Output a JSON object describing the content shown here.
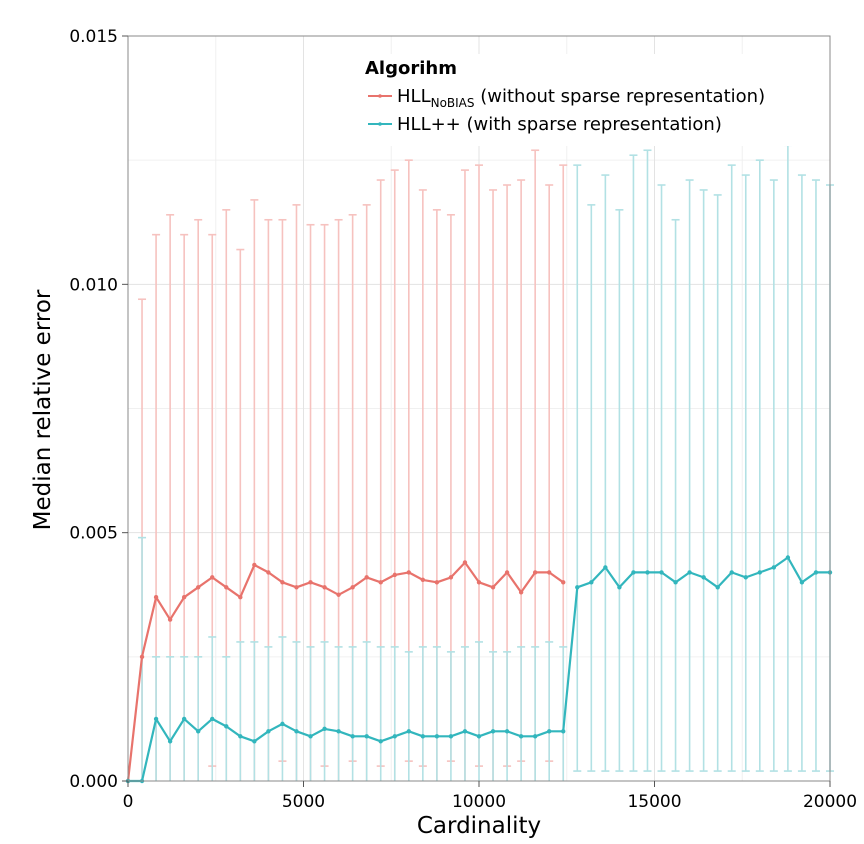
{
  "chart_data": {
    "type": "line",
    "xlabel": "Cardinality",
    "ylabel": "Median relative error",
    "xlim": [
      0,
      20000
    ],
    "ylim": [
      0,
      0.015
    ],
    "x_ticks": [
      "0",
      "5000",
      "10000",
      "15000",
      "20000"
    ],
    "y_ticks": [
      "0.000",
      "0.005",
      "0.010",
      "0.015"
    ],
    "x_tick_values": [
      0,
      5000,
      10000,
      15000,
      20000
    ],
    "y_tick_values": [
      0,
      0.005,
      0.01,
      0.015
    ],
    "grid": true,
    "legend": {
      "title": "Algorihm",
      "placement": "top-right",
      "entries": [
        {
          "main": "HLL",
          "subscript": "NoBIAS",
          "rest": " (without sparse representation)"
        },
        {
          "main": "HLL++",
          "subscript": "",
          "rest": " (with sparse representation)"
        }
      ]
    },
    "colors": {
      "nobias": "#e8736c",
      "nobias_err": "#f6c2bf",
      "hllpp": "#32b6bd",
      "hllpp_err": "#b2e1e4",
      "grid": "#e3e3e3",
      "frame": "#888888"
    },
    "series": [
      {
        "id": "nobias",
        "x": [
          0,
          400,
          800,
          1200,
          1600,
          2000,
          2400,
          2800,
          3200,
          3600,
          4000,
          4400,
          4800,
          5200,
          5600,
          6000,
          6400,
          6800,
          7200,
          7600,
          8000,
          8400,
          8800,
          9200,
          9600,
          10000,
          10400,
          10800,
          11200,
          11600,
          12000,
          12400
        ],
        "y": [
          0.0,
          0.0025,
          0.0037,
          0.00325,
          0.0037,
          0.0039,
          0.0041,
          0.0039,
          0.0037,
          0.00435,
          0.0042,
          0.004,
          0.0039,
          0.004,
          0.0039,
          0.00375,
          0.0039,
          0.0041,
          0.004,
          0.00415,
          0.0042,
          0.00405,
          0.004,
          0.0041,
          0.0044,
          0.004,
          0.0039,
          0.0042,
          0.0038,
          0.0042,
          0.0042,
          0.004
        ],
        "upper": [
          0.0,
          0.0097,
          0.011,
          0.0114,
          0.011,
          0.0113,
          0.011,
          0.0115,
          0.0107,
          0.0117,
          0.0113,
          0.0113,
          0.0116,
          0.0112,
          0.0112,
          0.0113,
          0.0114,
          0.0116,
          0.0121,
          0.0123,
          0.0125,
          0.0119,
          0.0115,
          0.0114,
          0.0123,
          0.0124,
          0.0119,
          0.012,
          0.0121,
          0.0127,
          0.012,
          0.0124
        ],
        "lower": [
          0.0,
          0.0,
          0.0,
          0.0,
          0.0,
          0.0,
          0.0003,
          0.0,
          0.0,
          0.0,
          0.0,
          0.0004,
          0.0,
          0.0,
          0.0003,
          0.0,
          0.0004,
          0.0,
          0.0003,
          0.0,
          0.0004,
          0.0003,
          0.0,
          0.0004,
          0.0,
          0.0003,
          0.0,
          0.0003,
          0.0004,
          0.0,
          0.0004,
          0.0
        ]
      },
      {
        "id": "hllpp",
        "x": [
          0,
          400,
          800,
          1200,
          1600,
          2000,
          2400,
          2800,
          3200,
          3600,
          4000,
          4400,
          4800,
          5200,
          5600,
          6000,
          6400,
          6800,
          7200,
          7600,
          8000,
          8400,
          8800,
          9200,
          9600,
          10000,
          10400,
          10800,
          11200,
          11600,
          12000,
          12400,
          12800,
          13200,
          13600,
          14000,
          14400,
          14800,
          15200,
          15600,
          16000,
          16400,
          16800,
          17200,
          17600,
          18000,
          18400,
          18800,
          19200,
          19600,
          20000
        ],
        "y": [
          0.0,
          0.0,
          0.00125,
          0.0008,
          0.00125,
          0.001,
          0.00125,
          0.0011,
          0.0009,
          0.0008,
          0.001,
          0.00115,
          0.001,
          0.0009,
          0.00105,
          0.001,
          0.0009,
          0.0009,
          0.0008,
          0.0009,
          0.001,
          0.0009,
          0.0009,
          0.0009,
          0.001,
          0.0009,
          0.001,
          0.001,
          0.0009,
          0.0009,
          0.001,
          0.001,
          0.0039,
          0.004,
          0.0043,
          0.0039,
          0.0042,
          0.0042,
          0.0042,
          0.004,
          0.0042,
          0.0041,
          0.0039,
          0.0042,
          0.0041,
          0.0042,
          0.0043,
          0.0045,
          0.004,
          0.0042,
          0.0042
        ],
        "upper": [
          0.0,
          0.0049,
          0.0025,
          0.0025,
          0.0025,
          0.0025,
          0.0029,
          0.0025,
          0.0028,
          0.0028,
          0.0027,
          0.0029,
          0.0028,
          0.0027,
          0.0028,
          0.0027,
          0.0027,
          0.0028,
          0.0027,
          0.0027,
          0.0026,
          0.0027,
          0.0027,
          0.0026,
          0.0027,
          0.0028,
          0.0026,
          0.0026,
          0.0027,
          0.0027,
          0.0028,
          0.0027,
          0.0124,
          0.0116,
          0.0122,
          0.0115,
          0.0126,
          0.0127,
          0.012,
          0.0113,
          0.0121,
          0.0119,
          0.0118,
          0.0124,
          0.0122,
          0.0125,
          0.0121,
          0.0128,
          0.0122,
          0.0121,
          0.012
        ],
        "lower": [
          0.0,
          0.0,
          0.0,
          0.0,
          0.0,
          0.0,
          0.0,
          0.0,
          0.0,
          0.0,
          0.0,
          0.0,
          0.0,
          0.0,
          0.0,
          0.0,
          0.0,
          0.0,
          0.0,
          0.0,
          0.0,
          0.0,
          0.0,
          0.0,
          0.0,
          0.0,
          0.0,
          0.0,
          0.0,
          0.0,
          0.0,
          0.0,
          0.0002,
          0.0002,
          0.0002,
          0.0002,
          0.0002,
          0.0002,
          0.0002,
          0.0002,
          0.0002,
          0.0002,
          0.0002,
          0.0002,
          0.0002,
          0.0002,
          0.0002,
          0.0002,
          0.0002,
          0.0002,
          0.0002
        ]
      }
    ]
  }
}
